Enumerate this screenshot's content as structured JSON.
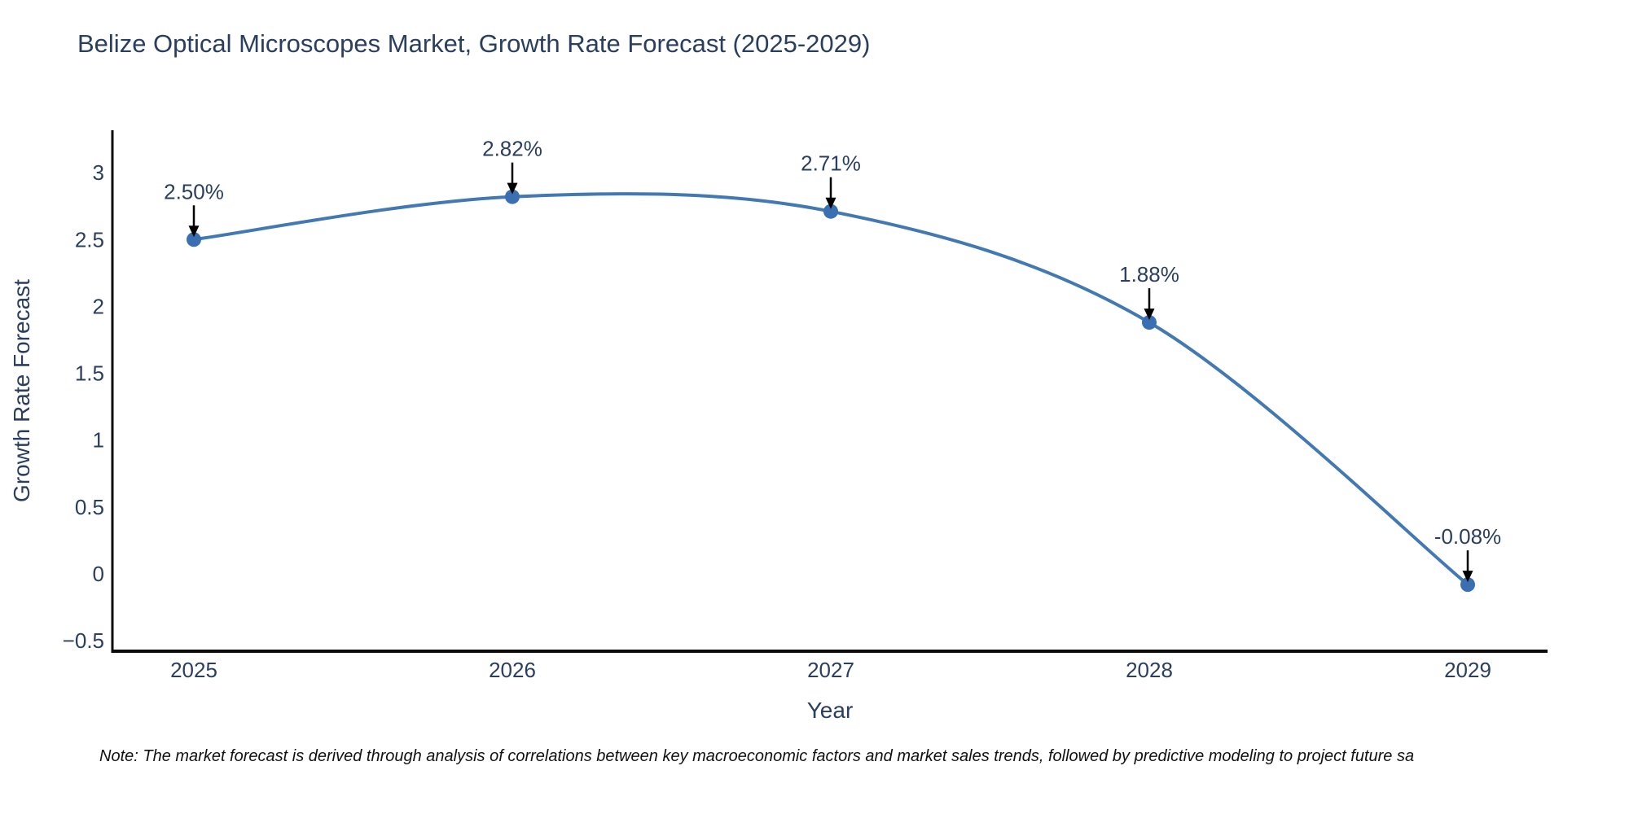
{
  "page": {
    "note": "Note: The market forecast is derived through analysis of correlations between key macroeconomic factors and market sales trends, followed by predictive modeling to project future sa"
  },
  "chart_data": {
    "type": "line",
    "title": "Belize Optical Microscopes Market, Growth Rate Forecast (2025-2029)",
    "x": [
      2025,
      2026,
      2027,
      2028,
      2029
    ],
    "values": [
      2.5,
      2.82,
      2.71,
      1.88,
      -0.08
    ],
    "point_labels": [
      "2.50%",
      "2.82%",
      "2.71%",
      "1.88%",
      "-0.08%"
    ],
    "xlabel": "Year",
    "ylabel": "Growth Rate Forecast",
    "ylim": [
      -0.5,
      3
    ],
    "ytick_values": [
      3,
      2.5,
      2,
      1.5,
      1,
      0.5,
      0,
      -0.5
    ],
    "ytick_labels": [
      "3",
      "2.5",
      "2",
      "1.5",
      "1",
      "0.5",
      "0",
      "−0.5"
    ],
    "xtick_labels": [
      "2025",
      "2026",
      "2027",
      "2028",
      "2029"
    ],
    "grid": false,
    "legend": "none",
    "line_shape": "spline",
    "colors": {
      "line": "#4279b2",
      "marker": "#3a70b2",
      "text": "#2a3f5f",
      "axis_line": "#0b0b0b",
      "annotation_arrow": "#000000"
    }
  }
}
